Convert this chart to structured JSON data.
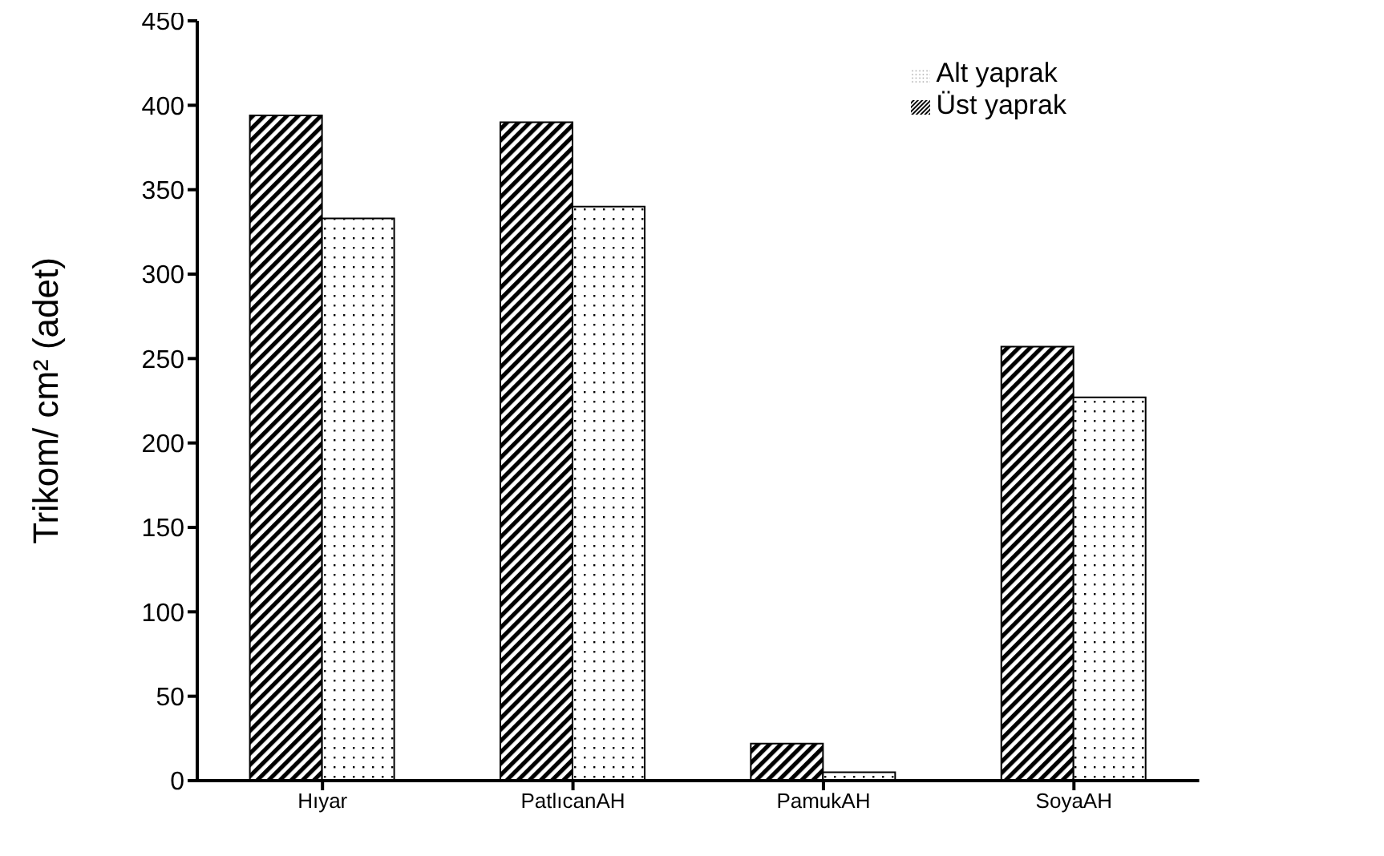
{
  "chart_data": {
    "type": "bar",
    "ylabel": "Trikom/ cm² (adet)",
    "categories": [
      "Hıyar",
      "PatlıcanAH",
      "PamukAH",
      "SoyaAH"
    ],
    "series": [
      {
        "name": "Üst yaprak",
        "color": "#000000",
        "values": [
          394,
          390,
          22,
          257
        ]
      },
      {
        "name": "Alt yaprak",
        "color": "#000000",
        "values": [
          333,
          340,
          5,
          227
        ]
      }
    ],
    "ylim": [
      0,
      450
    ],
    "yticks": [
      0,
      50,
      100,
      150,
      200,
      250,
      300,
      350,
      400,
      450
    ],
    "grid": false,
    "legend": "top right"
  }
}
